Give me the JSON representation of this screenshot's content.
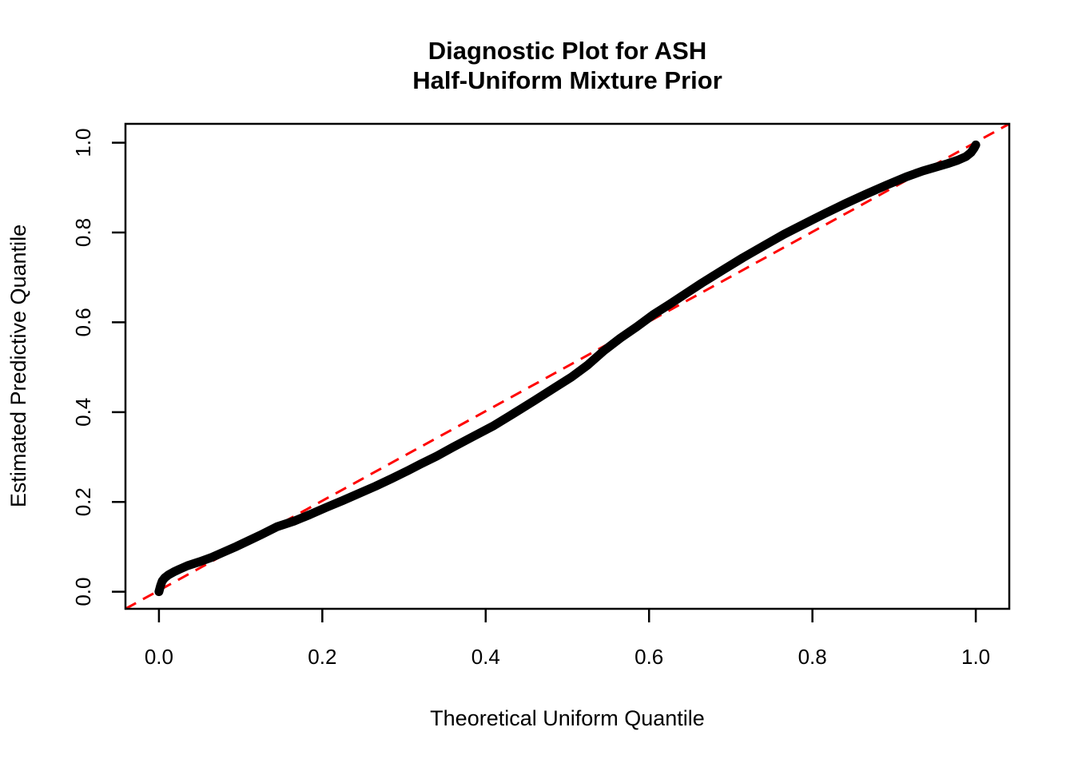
{
  "figure": {
    "title_line1": "Diagnostic Plot for ASH",
    "title_line2": "Half-Uniform Mixture Prior",
    "x_axis_label": "Theoretical Uniform Quantile",
    "y_axis_label": "Estimated Predictive Quantile"
  },
  "colors": {
    "background": "#ffffff",
    "text": "#000000",
    "curve": "#000000",
    "reference_line": "#ff0000",
    "axis": "#000000"
  },
  "chart_data": {
    "type": "line",
    "title": "Diagnostic Plot for ASH\nHalf-Uniform Mixture Prior",
    "xlabel": "Theoretical Uniform Quantile",
    "ylabel": "Estimated Predictive Quantile",
    "xlim": [
      -0.041,
      1.041
    ],
    "ylim": [
      -0.038,
      1.042
    ],
    "grid": false,
    "legend": null,
    "x_ticks": [
      0.0,
      0.2,
      0.4,
      0.6,
      0.8,
      1.0
    ],
    "y_ticks": [
      0.0,
      0.2,
      0.4,
      0.6,
      0.8,
      1.0
    ],
    "x_tick_labels": [
      "0.0",
      "0.2",
      "0.4",
      "0.6",
      "0.8",
      "1.0"
    ],
    "y_tick_labels": [
      "0.0",
      "0.2",
      "0.4",
      "0.6",
      "0.8",
      "1.0"
    ],
    "reference_line": {
      "name": "identity-line",
      "intercept": 0,
      "slope": 1,
      "style": "dashed",
      "color": "#ff0000"
    },
    "series": [
      {
        "name": "estimated-vs-theoretical-quantile-curve",
        "style": "thick-solid",
        "color": "#000000",
        "points": [
          [
            0.0,
            0.0
          ],
          [
            0.002,
            0.014
          ],
          [
            0.004,
            0.024
          ],
          [
            0.007,
            0.031
          ],
          [
            0.012,
            0.038
          ],
          [
            0.018,
            0.044
          ],
          [
            0.025,
            0.05
          ],
          [
            0.035,
            0.058
          ],
          [
            0.05,
            0.067
          ],
          [
            0.065,
            0.077
          ],
          [
            0.08,
            0.089
          ],
          [
            0.095,
            0.101
          ],
          [
            0.11,
            0.114
          ],
          [
            0.125,
            0.127
          ],
          [
            0.145,
            0.145
          ],
          [
            0.165,
            0.157
          ],
          [
            0.185,
            0.172
          ],
          [
            0.205,
            0.188
          ],
          [
            0.225,
            0.203
          ],
          [
            0.245,
            0.219
          ],
          [
            0.265,
            0.235
          ],
          [
            0.285,
            0.252
          ],
          [
            0.305,
            0.27
          ],
          [
            0.32,
            0.284
          ],
          [
            0.34,
            0.302
          ],
          [
            0.36,
            0.322
          ],
          [
            0.385,
            0.346
          ],
          [
            0.41,
            0.37
          ],
          [
            0.435,
            0.398
          ],
          [
            0.46,
            0.426
          ],
          [
            0.485,
            0.455
          ],
          [
            0.505,
            0.478
          ],
          [
            0.525,
            0.505
          ],
          [
            0.545,
            0.537
          ],
          [
            0.565,
            0.565
          ],
          [
            0.585,
            0.59
          ],
          [
            0.605,
            0.617
          ],
          [
            0.625,
            0.64
          ],
          [
            0.645,
            0.664
          ],
          [
            0.665,
            0.688
          ],
          [
            0.69,
            0.716
          ],
          [
            0.715,
            0.744
          ],
          [
            0.74,
            0.77
          ],
          [
            0.765,
            0.796
          ],
          [
            0.79,
            0.819
          ],
          [
            0.815,
            0.842
          ],
          [
            0.84,
            0.864
          ],
          [
            0.865,
            0.885
          ],
          [
            0.89,
            0.905
          ],
          [
            0.915,
            0.924
          ],
          [
            0.935,
            0.937
          ],
          [
            0.95,
            0.945
          ],
          [
            0.965,
            0.953
          ],
          [
            0.978,
            0.961
          ],
          [
            0.988,
            0.969
          ],
          [
            0.994,
            0.978
          ],
          [
            0.998,
            0.988
          ],
          [
            1.0,
            0.995
          ]
        ]
      }
    ]
  }
}
